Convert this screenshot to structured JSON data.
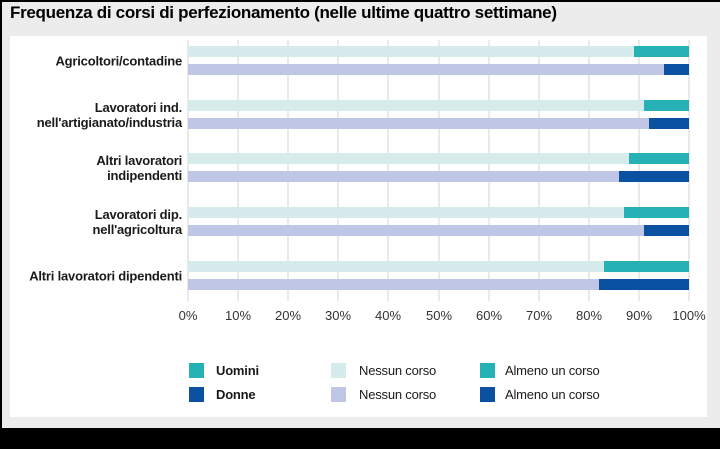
{
  "title": "Frequenza di corsi di perfezionamento (nelle ultime quattro settimane)",
  "colors": {
    "teal": "#26b2b4",
    "dark_blue": "#0b51a2",
    "light_teal": "#d6ebec",
    "lavender": "#c0c6e6",
    "panel": "#ffffff",
    "background": "#ececec",
    "grid": "#e9e9e9"
  },
  "chart_data": {
    "type": "bar",
    "orientation": "horizontal",
    "stacked": true,
    "unit": "%",
    "title": "Frequenza di corsi di perfezionamento (nelle ultime quattro settimane)",
    "xlabel": "",
    "ylabel": "",
    "xlim": [
      0,
      100
    ],
    "grid": true,
    "x_ticks": [
      "0%",
      "10%",
      "20%",
      "30%",
      "40%",
      "50%",
      "60%",
      "70%",
      "80%",
      "90%",
      "100%"
    ],
    "segments": [
      "Nessun corso",
      "Almeno un corso"
    ],
    "groups": [
      {
        "label_lines": [
          "Agricoltori/contadine"
        ],
        "uomini": {
          "nessun_corso": 89,
          "almeno_un_corso": 11
        },
        "donne": {
          "nessun_corso": 95,
          "almeno_un_corso": 5
        }
      },
      {
        "label_lines": [
          "Lavoratori ind.",
          "nell'artigianato/industria"
        ],
        "uomini": {
          "nessun_corso": 91,
          "almeno_un_corso": 9
        },
        "donne": {
          "nessun_corso": 92,
          "almeno_un_corso": 8
        }
      },
      {
        "label_lines": [
          "Altri lavoratori",
          "indipendenti"
        ],
        "uomini": {
          "nessun_corso": 88,
          "almeno_un_corso": 12
        },
        "donne": {
          "nessun_corso": 86,
          "almeno_un_corso": 14
        }
      },
      {
        "label_lines": [
          "Lavoratori dip.",
          "nell'agricoltura"
        ],
        "uomini": {
          "nessun_corso": 87,
          "almeno_un_corso": 13
        },
        "donne": {
          "nessun_corso": 91,
          "almeno_un_corso": 9
        }
      },
      {
        "label_lines": [
          "Altri lavoratori dipendenti"
        ],
        "uomini": {
          "nessun_corso": 83,
          "almeno_un_corso": 17
        },
        "donne": {
          "nessun_corso": 82,
          "almeno_un_corso": 18
        }
      }
    ],
    "legend": [
      {
        "label": "Uomini",
        "color_key": "teal",
        "bold": true
      },
      {
        "label": "Donne",
        "color_key": "dark_blue",
        "bold": true
      },
      {
        "label": "Nessun corso",
        "color_key": "light_teal",
        "bold": false
      },
      {
        "label": "Nessun corso",
        "color_key": "lavender",
        "bold": false
      },
      {
        "label": "Almeno un corso",
        "color_key": "teal",
        "bold": false
      },
      {
        "label": "Almeno un corso",
        "color_key": "dark_blue",
        "bold": false
      }
    ],
    "legend_position": "bottom"
  }
}
